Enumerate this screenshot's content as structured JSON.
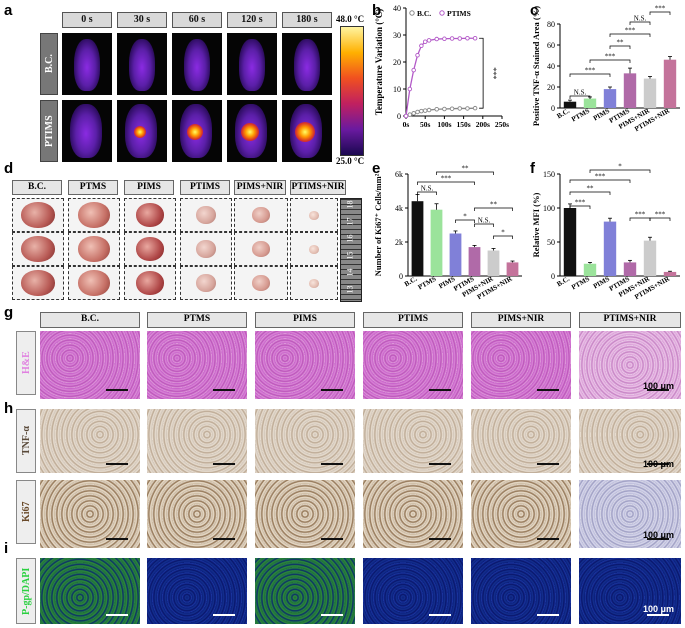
{
  "panels": {
    "a": "a",
    "b": "b",
    "c": "c",
    "d": "d",
    "e": "e",
    "f": "f",
    "g": "g",
    "h": "h",
    "i": "i"
  },
  "panel_a": {
    "times": [
      "0 s",
      "30 s",
      "60 s",
      "120 s",
      "180 s"
    ],
    "rows": [
      "B.C.",
      "PTIMS"
    ],
    "colorbar_max": "48.0 °C",
    "colorbar_min": "25.0 °C"
  },
  "groups": [
    "B.C.",
    "PTMS",
    "PIMS",
    "PTIMS",
    "PIMS+NIR",
    "PTIMS+NIR"
  ],
  "ruler_marks": [
    "13",
    "14",
    "15",
    "16",
    "17",
    "18"
  ],
  "panel_g": {
    "row": "H&E",
    "scale": "100 μm"
  },
  "panel_h": {
    "rows": [
      "TNF-α",
      "Ki67"
    ],
    "scale": "100 μm"
  },
  "panel_i": {
    "row": "P-gp/DAPI",
    "scale": "100 μm"
  },
  "colors": {
    "BC": "#111111",
    "PTMS": "#9be39b",
    "PIMS": "#8080d8",
    "PTIMS": "#b06aa8",
    "PIMS_NIR": "#cccccc",
    "PTIMS_NIR": "#c4739b"
  },
  "chart_data": [
    {
      "id": "b",
      "type": "line",
      "xlabel": "",
      "ylabel": "Temperature Variation (°C)",
      "xlim": [
        0,
        250
      ],
      "ylim": [
        0,
        40
      ],
      "xticks": [
        "0s",
        "50s",
        "100s",
        "150s",
        "200s",
        "250s"
      ],
      "yticks": [
        "0",
        "10",
        "20",
        "30",
        "40"
      ],
      "legend": [
        "B.C.",
        "PTIMS"
      ],
      "significance": "***",
      "series": [
        {
          "name": "B.C.",
          "x": [
            0,
            10,
            20,
            30,
            40,
            50,
            60,
            80,
            100,
            120,
            140,
            160,
            180
          ],
          "y": [
            0,
            0.5,
            1,
            1.5,
            1.8,
            2,
            2.2,
            2.5,
            2.6,
            2.7,
            2.8,
            2.8,
            2.9
          ]
        },
        {
          "name": "PTIMS",
          "x": [
            0,
            10,
            20,
            30,
            40,
            50,
            60,
            80,
            100,
            120,
            140,
            160,
            180
          ],
          "y": [
            0,
            10,
            17,
            22.5,
            26,
            27.5,
            28,
            28.5,
            28.6,
            28.7,
            28.7,
            28.8,
            28.8
          ]
        }
      ]
    },
    {
      "id": "c",
      "type": "bar",
      "ylabel": "Positive TNF-α Stained Area (%)",
      "ylim": [
        0,
        80
      ],
      "yticks": [
        "0",
        "20",
        "40",
        "60",
        "80"
      ],
      "categories": [
        "B.C.",
        "PTMS",
        "PIMS",
        "PTIMS",
        "PIMS+NIR",
        "PTIMS+NIR"
      ],
      "values": [
        6,
        9,
        18,
        33,
        28,
        46
      ],
      "errors": [
        1.5,
        1.5,
        2,
        5,
        2,
        3
      ],
      "significance": [
        "N.S.",
        "***",
        "***",
        "**",
        "***",
        "N.S.",
        "***"
      ]
    },
    {
      "id": "e",
      "type": "bar",
      "ylabel": "Number of Ki67⁺ Cells/mm²",
      "ylim": [
        0,
        6000
      ],
      "yticks": [
        "0",
        "2k",
        "4k",
        "6k"
      ],
      "categories": [
        "B.C.",
        "PTMS",
        "PIMS",
        "PTIMS",
        "PIMS+NIR",
        "PTIMS+NIR"
      ],
      "values": [
        4400,
        3900,
        2500,
        1700,
        1500,
        800
      ],
      "errors": [
        400,
        350,
        150,
        100,
        120,
        80
      ],
      "significance": [
        "N.S.",
        "***",
        "**",
        "*",
        "**",
        "N.S.",
        "*"
      ]
    },
    {
      "id": "f",
      "type": "bar",
      "ylabel": "Relative MFI (%)",
      "ylim": [
        0,
        150
      ],
      "yticks": [
        "0",
        "50",
        "100",
        "150"
      ],
      "categories": [
        "B.C.",
        "PTMS",
        "PIMS",
        "PTIMS",
        "PIMS+NIR",
        "PTIMS+NIR"
      ],
      "values": [
        100,
        18,
        80,
        20,
        52,
        6
      ],
      "errors": [
        6,
        2,
        5,
        3,
        5,
        1
      ],
      "significance": [
        "***",
        "**",
        "***",
        "*",
        "***",
        "***"
      ]
    }
  ]
}
